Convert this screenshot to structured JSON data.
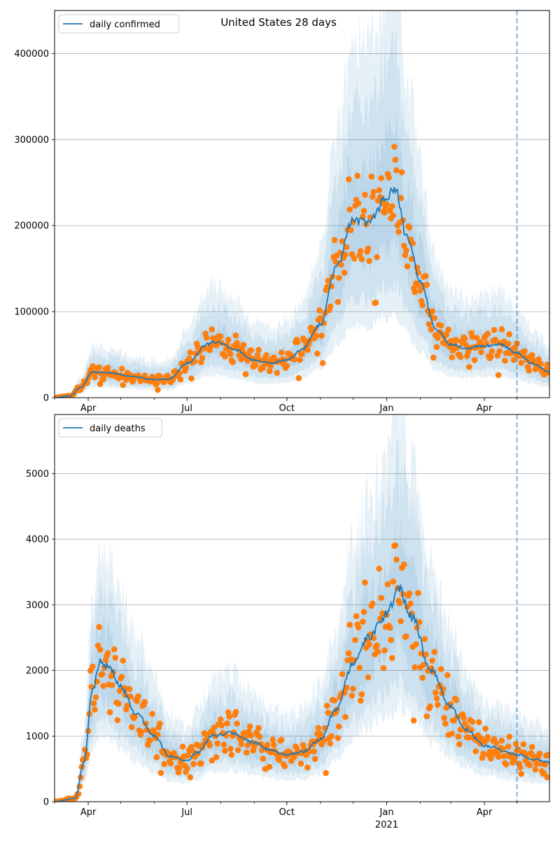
{
  "title": "United States 28 days",
  "chart_data": [
    {
      "type": "line",
      "legend": "daily confirmed",
      "legend_position": "top-left",
      "grid": "horizontal",
      "ylim": [
        0,
        450000
      ],
      "yticks": [
        0,
        100000,
        200000,
        300000,
        400000
      ],
      "xlim": [
        "2020-03-01",
        "2021-05-31"
      ],
      "xticks": [
        {
          "date": "2020-04-01",
          "label": "Apr"
        },
        {
          "date": "2020-07-01",
          "label": "Jul"
        },
        {
          "date": "2020-10-01",
          "label": "Oct"
        },
        {
          "date": "2021-01-01",
          "label": "Jan"
        },
        {
          "date": "2021-04-01",
          "label": "Apr"
        }
      ],
      "forecast_start": "2021-05-01",
      "line_color": "#1f77b4",
      "point_color": "#ff7f0e",
      "band_color": "#1f77b4",
      "trend": [
        [
          "2020-03-01",
          0
        ],
        [
          "2020-03-15",
          2000
        ],
        [
          "2020-03-25",
          12000
        ],
        [
          "2020-04-05",
          30000
        ],
        [
          "2020-04-20",
          29000
        ],
        [
          "2020-05-10",
          25000
        ],
        [
          "2020-06-01",
          21000
        ],
        [
          "2020-06-15",
          22000
        ],
        [
          "2020-07-01",
          40000
        ],
        [
          "2020-07-20",
          62000
        ],
        [
          "2020-07-28",
          65000
        ],
        [
          "2020-08-15",
          55000
        ],
        [
          "2020-09-01",
          44000
        ],
        [
          "2020-09-15",
          40000
        ],
        [
          "2020-10-01",
          44000
        ],
        [
          "2020-10-15",
          56000
        ],
        [
          "2020-11-01",
          85000
        ],
        [
          "2020-11-15",
          150000
        ],
        [
          "2020-12-01",
          205000
        ],
        [
          "2020-12-15",
          205000
        ],
        [
          "2021-01-01",
          232000
        ],
        [
          "2021-01-08",
          245000
        ],
        [
          "2021-01-20",
          185000
        ],
        [
          "2021-02-01",
          135000
        ],
        [
          "2021-02-15",
          80000
        ],
        [
          "2021-03-01",
          62000
        ],
        [
          "2021-03-15",
          58000
        ],
        [
          "2021-04-01",
          60000
        ],
        [
          "2021-04-15",
          62000
        ],
        [
          "2021-05-01",
          52000
        ],
        [
          "2021-05-15",
          40000
        ],
        [
          "2021-05-31",
          30000
        ]
      ],
      "bands": [
        {
          "lower_factor": 0.75,
          "upper_factor": 1.3
        },
        {
          "lower_factor": 0.55,
          "upper_factor": 1.65
        },
        {
          "lower_factor": 0.4,
          "upper_factor": 2.0
        }
      ],
      "band_shape": {
        "spread": 0.2,
        "peak": 1.5
      },
      "scatter_spread": 0.3
    },
    {
      "type": "line",
      "legend": "daily deaths",
      "legend_position": "top-left",
      "grid": "horizontal",
      "ylim": [
        0,
        5900
      ],
      "yticks": [
        0,
        1000,
        2000,
        3000,
        4000,
        5000
      ],
      "xlim": [
        "2020-03-01",
        "2021-05-31"
      ],
      "xticks": [
        {
          "date": "2020-04-01",
          "label": "Apr"
        },
        {
          "date": "2020-07-01",
          "label": "Jul"
        },
        {
          "date": "2020-10-01",
          "label": "Oct"
        },
        {
          "date": "2021-01-01",
          "label": "Jan",
          "sublabel": "2021"
        },
        {
          "date": "2021-04-01",
          "label": "Apr"
        }
      ],
      "forecast_start": "2021-05-01",
      "line_color": "#1f77b4",
      "point_color": "#ff7f0e",
      "band_color": "#1f77b4",
      "trend": [
        [
          "2020-03-01",
          0
        ],
        [
          "2020-03-20",
          50
        ],
        [
          "2020-03-28",
          600
        ],
        [
          "2020-04-05",
          1700
        ],
        [
          "2020-04-12",
          2150
        ],
        [
          "2020-04-20",
          2050
        ],
        [
          "2020-05-01",
          1750
        ],
        [
          "2020-05-15",
          1350
        ],
        [
          "2020-06-01",
          1000
        ],
        [
          "2020-06-15",
          700
        ],
        [
          "2020-07-01",
          620
        ],
        [
          "2020-07-10",
          750
        ],
        [
          "2020-07-25",
          1000
        ],
        [
          "2020-08-10",
          1050
        ],
        [
          "2020-09-01",
          900
        ],
        [
          "2020-09-15",
          780
        ],
        [
          "2020-10-01",
          720
        ],
        [
          "2020-10-15",
          760
        ],
        [
          "2020-11-01",
          950
        ],
        [
          "2020-11-15",
          1400
        ],
        [
          "2020-12-01",
          2100
        ],
        [
          "2020-12-15",
          2500
        ],
        [
          "2021-01-01",
          2850
        ],
        [
          "2021-01-12",
          3250
        ],
        [
          "2021-01-25",
          2800
        ],
        [
          "2021-02-10",
          2000
        ],
        [
          "2021-03-01",
          1450
        ],
        [
          "2021-03-15",
          1100
        ],
        [
          "2021-04-01",
          850
        ],
        [
          "2021-05-01",
          720
        ],
        [
          "2021-05-15",
          650
        ],
        [
          "2021-05-31",
          600
        ]
      ],
      "bands": [
        {
          "lower_factor": 0.75,
          "upper_factor": 1.25
        },
        {
          "lower_factor": 0.58,
          "upper_factor": 1.55
        },
        {
          "lower_factor": 0.45,
          "upper_factor": 1.85
        }
      ],
      "band_shape": {
        "spread": 0.22,
        "peak": 1.6
      },
      "scatter_spread": 0.35
    }
  ]
}
